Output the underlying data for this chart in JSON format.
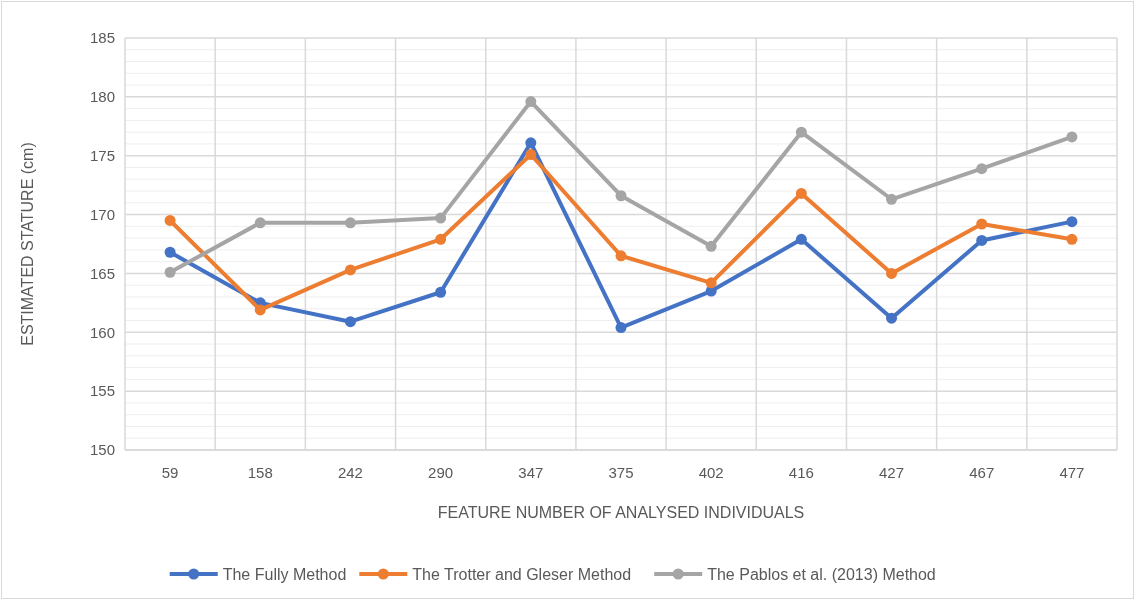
{
  "chart_data": {
    "type": "line",
    "xlabel": "FEATURE NUMBER OF ANALYSED INDIVIDUALS",
    "ylabel": "ESTIMATED STATURE (cm)",
    "categories": [
      "59",
      "158",
      "242",
      "290",
      "347",
      "375",
      "402",
      "416",
      "427",
      "467",
      "477"
    ],
    "ylim": [
      150,
      185
    ],
    "yticks": [
      150,
      155,
      160,
      165,
      170,
      175,
      180,
      185
    ],
    "grid": true,
    "legend": "bottom",
    "marker": "circle",
    "line_style": "solid",
    "series": [
      {
        "name": "The Fully Method",
        "color": "#4472c4",
        "values": [
          166.8,
          162.5,
          160.9,
          163.4,
          176.1,
          160.4,
          163.5,
          167.9,
          161.2,
          167.8,
          169.4
        ]
      },
      {
        "name": "The Trotter and Gleser Method",
        "color": "#ed7d31",
        "values": [
          169.5,
          161.9,
          165.3,
          167.9,
          175.1,
          166.5,
          164.2,
          171.8,
          165.0,
          169.2,
          167.9
        ]
      },
      {
        "name": "The Pablos et al. (2013) Method",
        "color": "#a5a5a5",
        "values": [
          165.1,
          169.3,
          169.3,
          169.7,
          179.6,
          171.6,
          167.3,
          177.0,
          171.3,
          173.9,
          176.6
        ]
      }
    ]
  }
}
